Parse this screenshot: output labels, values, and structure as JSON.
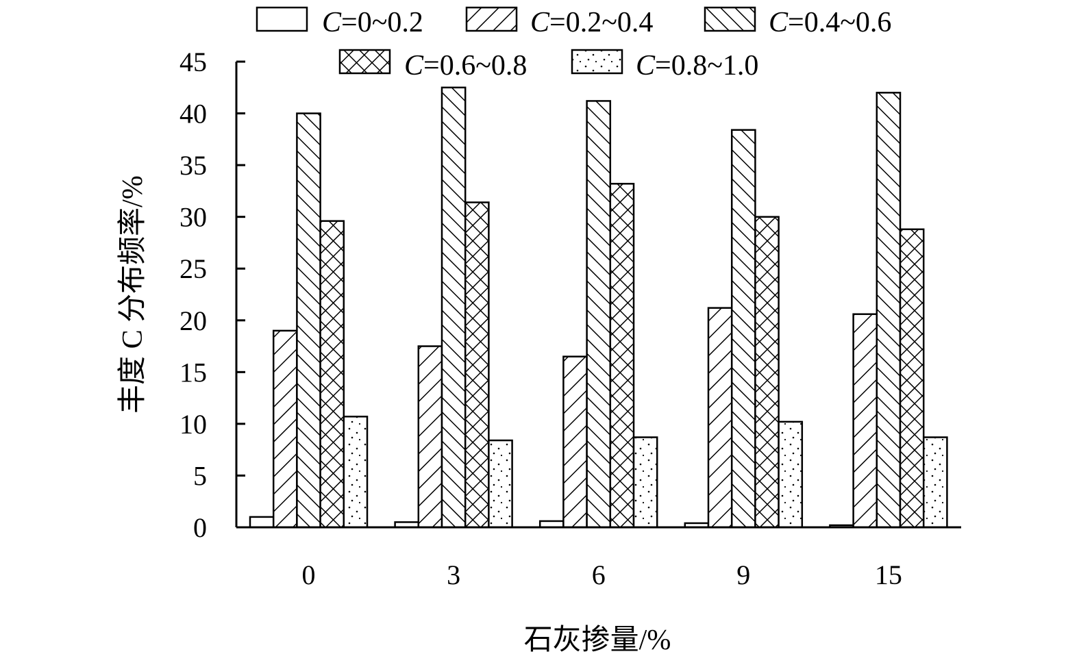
{
  "chart_data": {
    "type": "bar",
    "xlabel": "石灰掺量/%",
    "ylabel": "丰度 C 分布频率/%",
    "ylim": [
      0,
      45
    ],
    "yticks": [
      0,
      5,
      10,
      15,
      20,
      25,
      30,
      35,
      40,
      45
    ],
    "categories": [
      "0",
      "3",
      "6",
      "9",
      "15"
    ],
    "legend_position": "top",
    "grid": false,
    "series": [
      {
        "name": "C=0~0.2",
        "prefix": "C",
        "suffix": "=0~0.2",
        "pattern": "empty",
        "values": [
          1.0,
          0.5,
          0.6,
          0.4,
          0.2
        ]
      },
      {
        "name": "C=0.2~0.4",
        "prefix": "C",
        "suffix": "=0.2~0.4",
        "pattern": "forward-hatch",
        "values": [
          19.0,
          17.5,
          16.5,
          21.2,
          20.6
        ]
      },
      {
        "name": "C=0.4~0.6",
        "prefix": "C",
        "suffix": "=0.4~0.6",
        "pattern": "back-hatch",
        "values": [
          40.0,
          42.5,
          41.2,
          38.4,
          42.0
        ]
      },
      {
        "name": "C=0.6~0.8",
        "prefix": "C",
        "suffix": "=0.6~0.8",
        "pattern": "cross-hatch",
        "values": [
          29.6,
          31.4,
          33.2,
          30.0,
          28.8
        ]
      },
      {
        "name": "C=0.8~1.0",
        "prefix": "C",
        "suffix": "=0.8~1.0",
        "pattern": "dots",
        "values": [
          10.7,
          8.4,
          8.7,
          10.2,
          8.7
        ]
      }
    ]
  }
}
